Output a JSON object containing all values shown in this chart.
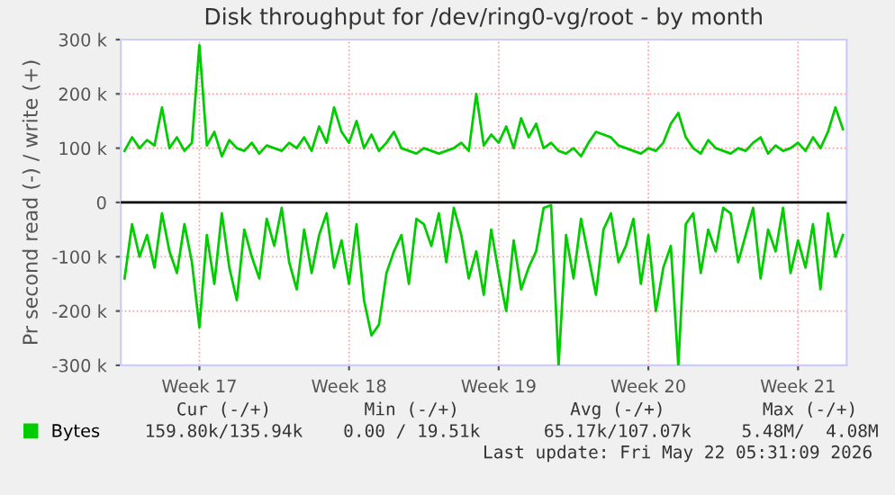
{
  "chart_data": {
    "type": "line",
    "title": "Disk throughput for /dev/ring0-vg/root - by month",
    "ylabel": "Pr second read (-) / write (+)",
    "categories": [
      null,
      null,
      null,
      null,
      null,
      null,
      null,
      null,
      null,
      null,
      "Week 17",
      null,
      null,
      null,
      null,
      null,
      null,
      null,
      null,
      null,
      null,
      null,
      null,
      null,
      null,
      null,
      null,
      null,
      null,
      null,
      "Week 18",
      null,
      null,
      null,
      null,
      null,
      null,
      null,
      null,
      null,
      null,
      null,
      null,
      null,
      null,
      null,
      null,
      null,
      null,
      null,
      "Week 19",
      null,
      null,
      null,
      null,
      null,
      null,
      null,
      null,
      null,
      null,
      null,
      null,
      null,
      null,
      null,
      null,
      null,
      null,
      null,
      "Week 20",
      null,
      null,
      null,
      null,
      null,
      null,
      null,
      null,
      null,
      null,
      null,
      null,
      null,
      null,
      null,
      null,
      null,
      null,
      null,
      "Week 21",
      null,
      null,
      null,
      null,
      null,
      null
    ],
    "series": [
      {
        "name": "Bytes",
        "color": "#00cc00",
        "values": [
          95000,
          120000,
          100000,
          115000,
          105000,
          175000,
          100000,
          120000,
          95000,
          110000,
          290000,
          105000,
          130000,
          85000,
          115000,
          100000,
          95000,
          110000,
          90000,
          105000,
          100000,
          95000,
          110000,
          100000,
          120000,
          95000,
          140000,
          110000,
          175000,
          130000,
          110000,
          150000,
          100000,
          125000,
          95000,
          110000,
          130000,
          100000,
          95000,
          90000,
          100000,
          95000,
          90000,
          95000,
          100000,
          110000,
          95000,
          200000,
          105000,
          125000,
          110000,
          140000,
          100000,
          155000,
          120000,
          145000,
          100000,
          110000,
          95000,
          90000,
          100000,
          85000,
          110000,
          130000,
          125000,
          120000,
          105000,
          100000,
          95000,
          90000,
          100000,
          95000,
          110000,
          145000,
          165000,
          120000,
          100000,
          90000,
          115000,
          100000,
          95000,
          90000,
          100000,
          95000,
          110000,
          120000,
          90000,
          105000,
          95000,
          100000,
          110000,
          95000,
          120000,
          100000,
          130000,
          175000,
          135000
        ]
      },
      {
        "color": "#00cc00",
        "values": [
          -140000,
          -40000,
          -100000,
          -60000,
          -120000,
          -20000,
          -90000,
          -130000,
          -40000,
          -110000,
          -230000,
          -60000,
          -150000,
          -20000,
          -120000,
          -180000,
          -50000,
          -100000,
          -140000,
          -30000,
          -80000,
          -10000,
          -110000,
          -160000,
          -50000,
          -130000,
          -60000,
          -20000,
          -120000,
          -70000,
          -150000,
          -40000,
          -180000,
          -245000,
          -225000,
          -130000,
          -90000,
          -60000,
          -150000,
          -30000,
          -40000,
          -80000,
          -20000,
          -110000,
          -10000,
          -60000,
          -140000,
          -90000,
          -170000,
          -50000,
          -130000,
          -200000,
          -70000,
          -160000,
          -120000,
          -90000,
          -10000,
          -5000,
          -300000,
          -60000,
          -140000,
          -30000,
          -100000,
          -170000,
          -50000,
          -20000,
          -110000,
          -80000,
          -30000,
          -150000,
          -60000,
          -200000,
          -120000,
          -80000,
          -300000,
          -40000,
          -20000,
          -130000,
          -50000,
          -90000,
          -10000,
          -20000,
          -110000,
          -60000,
          -10000,
          -140000,
          -50000,
          -90000,
          -10000,
          -130000,
          -70000,
          -120000,
          -40000,
          -160000,
          -20000,
          -100000,
          -60000
        ]
      }
    ],
    "ylim": [
      -300000,
      300000
    ],
    "yticks": [
      {
        "value": -300000,
        "label": "-300 k"
      },
      {
        "value": -200000,
        "label": "-200 k"
      },
      {
        "value": -100000,
        "label": "-100 k"
      },
      0,
      {
        "value": 100000,
        "label": "100 k"
      },
      {
        "value": 200000,
        "label": "200 k"
      },
      {
        "value": 300000,
        "label": "300 k"
      }
    ],
    "ref_lines": [
      {
        "axis": "y",
        "value": 0,
        "color": "#000000"
      }
    ],
    "grid": true,
    "legend": "bottom left",
    "marker": "none",
    "line_style": "solid",
    "annotations": [
      "Cur (-/+)",
      "Min (-/+)",
      "Avg (-/+)",
      "Max (-/+)",
      "159.80k/135.94k",
      "0.00 / 19.51k",
      "65.17k/107.07k",
      "5.48M/  4.08M",
      "Last update: Fri May 22 05:31:09 2026"
    ]
  }
}
